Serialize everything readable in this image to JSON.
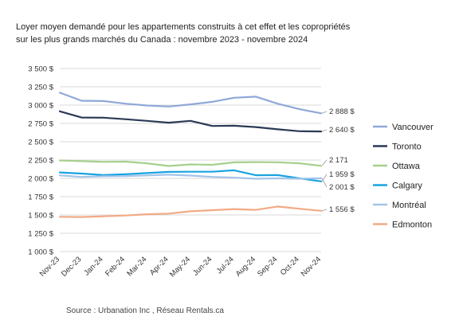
{
  "title_line1": "Loyer moyen demandé pour les appartements construits à cet effet et les copropriétés",
  "title_line2": "sur les plus grands marchés du Canada : novembre 2023 - novembre 2024",
  "source": "Source : Urbanation Inc , Réseau Rentals.ca",
  "chart_data": {
    "type": "line",
    "x": [
      "Nov-23",
      "Dec-23",
      "Jan-24",
      "Feb-24",
      "Mar-24",
      "Apr-24",
      "May-24",
      "Jun-24",
      "Jul-24",
      "Aug-24",
      "Sep-24",
      "Oct-24",
      "Nov-24"
    ],
    "ylim": [
      1000,
      3500
    ],
    "yticks": [
      1000,
      1250,
      1500,
      1750,
      2000,
      2250,
      2500,
      2750,
      3000,
      3250,
      3500
    ],
    "ytick_labels": [
      "1 000 $",
      "1 250 $",
      "1 500 $",
      "1 750 $",
      "2 000 $",
      "2 250 $",
      "2 500 $",
      "2 750 $",
      "3 000 $",
      "3 250 $",
      "3 500 $"
    ],
    "grid": true,
    "legend_position": "right",
    "series": [
      {
        "name": "Vancouver",
        "color": "#8fa8d8",
        "end_label": "2 888 $",
        "values": [
          3170,
          3060,
          3055,
          3020,
          2995,
          2980,
          3010,
          3045,
          3100,
          3115,
          3020,
          2945,
          2888
        ]
      },
      {
        "name": "Toronto",
        "color": "#2b3a55",
        "end_label": "2 640 $",
        "values": [
          2915,
          2830,
          2828,
          2808,
          2785,
          2760,
          2785,
          2715,
          2718,
          2700,
          2670,
          2643,
          2640
        ]
      },
      {
        "name": "Ottawa",
        "color": "#a6d08e",
        "end_label": "2 171",
        "values": [
          2245,
          2235,
          2225,
          2228,
          2205,
          2168,
          2190,
          2185,
          2218,
          2222,
          2220,
          2205,
          2171
        ]
      },
      {
        "name": "Calgary",
        "color": "#1aa3e0",
        "end_label": "1 959 $",
        "values": [
          2080,
          2065,
          2045,
          2055,
          2072,
          2088,
          2090,
          2090,
          2110,
          2042,
          2045,
          2000,
          1959
        ]
      },
      {
        "name": "Montréal",
        "color": "#a3c4e8",
        "end_label": "2 001 $",
        "values": [
          2040,
          2020,
          2028,
          2030,
          2040,
          2050,
          2038,
          2020,
          2010,
          1995,
          2000,
          1995,
          2001
        ]
      },
      {
        "name": "Edmonton",
        "color": "#f2aa84",
        "end_label": "1 556 $",
        "values": [
          1475,
          1472,
          1482,
          1492,
          1510,
          1518,
          1550,
          1565,
          1580,
          1570,
          1615,
          1585,
          1556
        ]
      }
    ]
  }
}
